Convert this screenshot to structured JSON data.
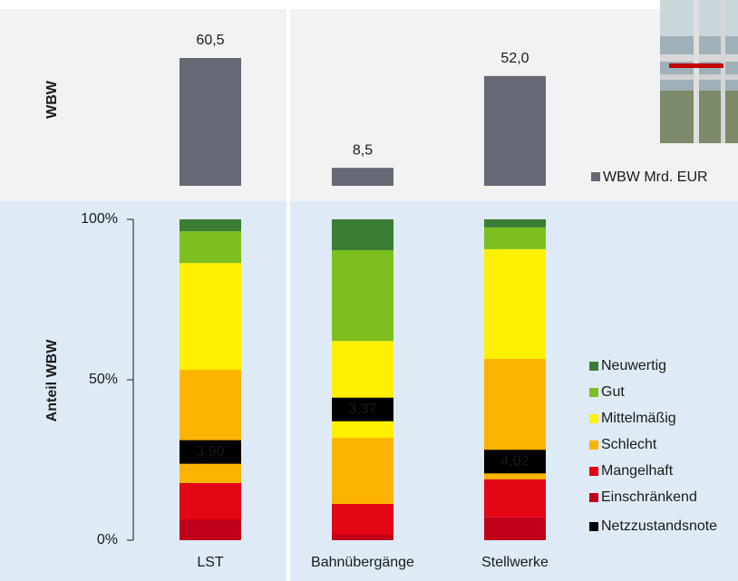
{
  "chart_data": [
    {
      "type": "bar",
      "ylabel": "WBW",
      "series": [
        {
          "name": "WBW Mrd. EUR",
          "color": "#646973",
          "values": [
            60.5,
            8.5,
            52.0
          ],
          "value_labels": [
            "60,5",
            "8,5",
            "52,0"
          ]
        }
      ]
    },
    {
      "type": "stacked_bar",
      "ylabel": "Anteil WBW",
      "categories": [
        "LST",
        "Bahnübergänge",
        "Stellwerke"
      ],
      "ylim": [
        0,
        100
      ],
      "yticks": [
        {
          "value": 0,
          "label": "0%"
        },
        {
          "value": 50,
          "label": "50%"
        },
        {
          "value": 100,
          "label": "100%"
        }
      ],
      "y2lim": [
        5,
        1
      ],
      "series": [
        {
          "name": "Einschränkend",
          "color": "#c00018",
          "values": [
            6.5,
            1.7,
            7.1
          ]
        },
        {
          "name": "Mangelhaft",
          "color": "#e30613",
          "values": [
            11.3,
            9.6,
            11.9
          ]
        },
        {
          "name": "Schlecht",
          "color": "#fbb400",
          "values": [
            35.3,
            20.6,
            37.5
          ]
        },
        {
          "name": "Mittelmäßig",
          "color": "#fff000",
          "values": [
            33.3,
            30.2,
            34.2
          ]
        },
        {
          "name": "Gut",
          "color": "#7cbf1f",
          "values": [
            9.9,
            28.3,
            6.8
          ]
        },
        {
          "name": "Neuwertig",
          "color": "#3a7d35",
          "values": [
            3.7,
            9.6,
            2.5
          ]
        }
      ],
      "score": {
        "name": "Netzzustandsnote",
        "color": "#000000",
        "axis": "y2",
        "values": [
          3.9,
          3.37,
          4.02
        ],
        "value_labels": [
          "3,90",
          "3,37",
          "4,02"
        ]
      }
    }
  ]
}
